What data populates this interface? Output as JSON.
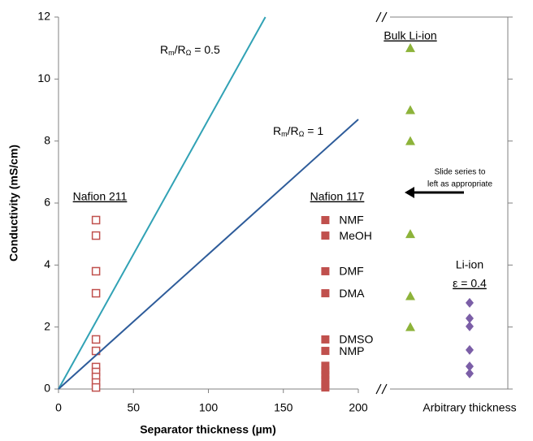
{
  "chart_data": {
    "type": "scatter",
    "y_label": "Conductivity (mS/cm)",
    "x_label": "Separator thickness (µm)",
    "xlim": [
      0,
      200
    ],
    "ylim": [
      0,
      12
    ],
    "xticks": [
      0,
      50,
      100,
      150,
      200
    ],
    "yticks": [
      0,
      2,
      4,
      6,
      8,
      10,
      12
    ],
    "series": [
      {
        "name": "Nafion 211",
        "kind": "open-square",
        "color": "#c0504d",
        "x": [
          25,
          25,
          25,
          25,
          25,
          25,
          25,
          25,
          25,
          25,
          25
        ],
        "values": [
          5.45,
          4.95,
          3.8,
          3.09,
          1.6,
          1.23,
          0.71,
          0.55,
          0.39,
          0.21,
          0.05
        ]
      },
      {
        "name": "Nafion 117",
        "kind": "filled-square",
        "color": "#c0504d",
        "x": [
          178,
          178,
          178,
          178,
          178,
          178,
          178,
          178,
          178,
          178,
          178,
          178
        ],
        "values": [
          5.45,
          4.95,
          3.8,
          3.09,
          1.6,
          1.23,
          0.75,
          0.6,
          0.45,
          0.3,
          0.15,
          0.05
        ],
        "point_labels": [
          "NMF",
          "MeOH",
          "DMF",
          "DMA",
          "DMSO",
          "NMP",
          null,
          null,
          null,
          null,
          null,
          null
        ]
      },
      {
        "name_parts": [
          "R",
          "m",
          "/R",
          "Ω",
          " = 0.5"
        ],
        "kind": "line",
        "color": "#31a2b5",
        "x": [
          0,
          138
        ],
        "values": [
          0,
          12
        ]
      },
      {
        "name_parts": [
          "R",
          "m",
          "/R",
          "Ω",
          " = 1"
        ],
        "kind": "line",
        "color": "#2e5c9a",
        "x": [
          0,
          200
        ],
        "values": [
          0,
          8.7
        ]
      }
    ],
    "panel2": {
      "x_label": "Arbitrary thickness",
      "annotation": [
        "Slide series to",
        "left as appropriate"
      ],
      "series": [
        {
          "name": "Bulk Li-ion",
          "kind": "triangle",
          "color": "#8db33a",
          "values": [
            11,
            9.0,
            8.0,
            5.0,
            3.0,
            2.0
          ]
        },
        {
          "name_lines": [
            "Li-ion",
            "ε = 0.4"
          ],
          "kind": "diamond",
          "color": "#7b5ea7",
          "values": [
            2.78,
            2.28,
            2.02,
            1.26,
            0.73,
            0.5
          ]
        }
      ]
    }
  }
}
